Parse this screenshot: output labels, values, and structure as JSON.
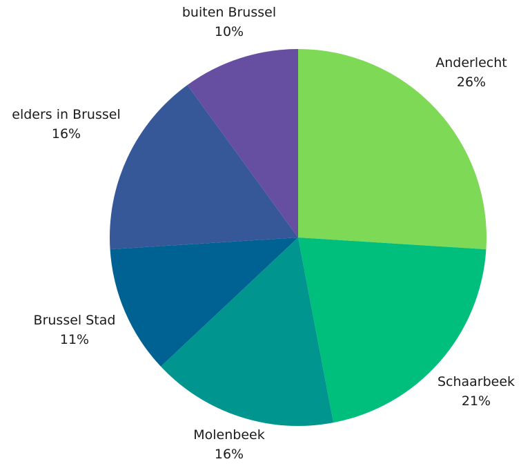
{
  "chart_data": {
    "type": "pie",
    "title": "",
    "slices": [
      {
        "label": "Anderlecht",
        "value": 26,
        "value_label": "26%",
        "color": "#7ed957"
      },
      {
        "label": "Schaarbeek",
        "value": 21,
        "value_label": "21%",
        "color": "#00bf7d"
      },
      {
        "label": "Molenbeek",
        "value": 16,
        "value_label": "16%",
        "color": "#00968f"
      },
      {
        "label": "Brussel Stad",
        "value": 11,
        "value_label": "11%",
        "color": "#006293"
      },
      {
        "label": "elders in Brussel",
        "value": 16,
        "value_label": "16%",
        "color": "#365899"
      },
      {
        "label": "buiten Brussel",
        "value": 10,
        "value_label": "10%",
        "color": "#664ea0"
      }
    ],
    "start_angle": "12 o'clock",
    "direction": "clockwise",
    "legend": "none"
  }
}
